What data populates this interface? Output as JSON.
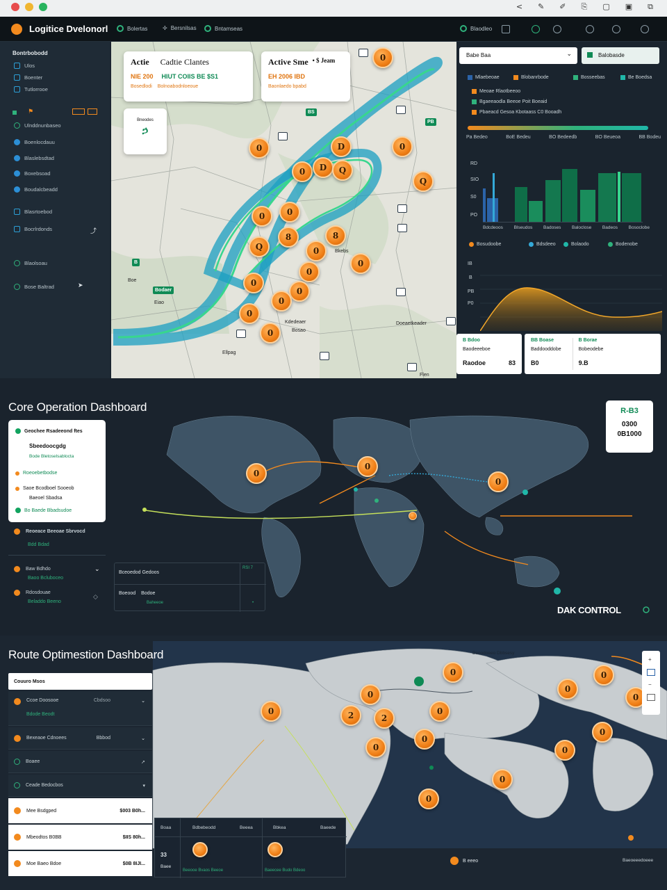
{
  "window": {
    "controls": [
      "#e74c4c",
      "#f0b630",
      "#28b45e"
    ],
    "toolbar_icons": [
      "✓",
      "✎",
      "⎘",
      "▢",
      "▣",
      "⎘",
      "○"
    ]
  },
  "header": {
    "title": "Logitice Dvelonorl",
    "nav": [
      "Bolertas",
      "Bersnilsas",
      "Bntamseas"
    ],
    "right_label": "Blaodleo"
  },
  "sidebar1": {
    "heading": "Bontrbobodd",
    "items": [
      "Ulos",
      "Boenter",
      "Tutlorrooe",
      "Ulnddnunbaseo",
      "Boenlocdauu",
      "Blaslebsdtad",
      "Boxebsoad",
      "Boudalcbeadd",
      "Blasrtoebod",
      "Bocrlrdonds",
      "Blaolsoau",
      "Bose Baltrad"
    ]
  },
  "map1": {
    "card_left": {
      "title": "Actie",
      "title2": "Cadtie Clantes",
      "value": "NIE 200",
      "value2": "HIUT COIIS BE $S1",
      "sub": "Bosedlodi",
      "sub2": "Bolnoabodnloeoue"
    },
    "card_right": {
      "title": "Active Sme",
      "title2": "• $ Jeam",
      "value": "EH 2006 IBD",
      "sub": "Baonlaedo bpabd"
    },
    "card_small": {
      "label": "Bneodes",
      "glyph": "ኃ"
    },
    "markers": {
      "g1": "BS",
      "g2": "PB",
      "g3": "B",
      "g4": "Boe",
      "g5": "Bodaer",
      "g6": "Eiao"
    },
    "place_labels": [
      "Bkebs",
      "Benter",
      "Kdedeaer",
      "Bosao",
      "Doeaetkeader",
      "Ellpag",
      "Flen"
    ],
    "pins": [
      "0",
      "0",
      "D",
      "0",
      "0",
      "D",
      "Q",
      "Q",
      "0",
      "0",
      "8",
      "8",
      "Q",
      "0",
      "0",
      "0",
      "0",
      "0",
      "0",
      "0",
      "0",
      "0",
      "0"
    ]
  },
  "analytics": {
    "select_label": "Babe Baa",
    "tab_label": "Balobasde",
    "legend": [
      "Mlaebeoae",
      "Blobanrbode",
      "Bosseebas",
      "Be Boedsa"
    ],
    "list": [
      "Meoae Rlaotbeeoo",
      "Bgaeeaodla Beeoe Poit Boeaid",
      "Pbaeacd Gesoa Kbotaass C0 Booadh"
    ],
    "kpis": [
      "Pa Bedeo",
      "BoE Bedeu",
      "BO Bedeedb",
      "BO Beueoa",
      "BB Bodeu"
    ],
    "bar_chart": {
      "ylabels": [
        "RD",
        "SIO",
        "S0",
        "PO"
      ],
      "xlabels": [
        "Bdcdeoos",
        "Blseudos",
        "Badoses",
        "Baloclose",
        "Badeos",
        "Bosoclobe"
      ]
    },
    "area_legend": [
      "Bosudoobe",
      "Bdsdeeo",
      "Bolaodo",
      "Bodenobe"
    ],
    "area_ylabels": [
      "IB",
      "B",
      "PB",
      "P0"
    ],
    "minis": [
      {
        "title": "B Bdoo",
        "l1": "Baodeeeboe",
        "l2": "Raodoe",
        "v": "83"
      },
      {
        "title": "BB Boase",
        "l1": "Baddooddobe",
        "l2": "B0",
        "v": ""
      },
      {
        "title": "B Borae",
        "l1": "Bobeodebe",
        "l2": "",
        "v": "9.B"
      }
    ]
  },
  "core": {
    "title": "Core Operation Dashboard",
    "panel": {
      "r1": "Geochee Rsadeeond ftes",
      "r2": "Sbeedoocgdg",
      "r3": "Bode Bletoselsablocta",
      "r4": "Roeoebetbodse",
      "r5": "Saoe Bcodboel Sooeob",
      "r6": "Baeoel Sbadsa",
      "r7": "Bo Baede Bbadsudoe"
    },
    "list": [
      {
        "t": "Reoeace Beeoae Sbrvocd",
        "s": "Bdd Bdad"
      },
      {
        "t": "Baw Bdhdo",
        "s": "Baoo Bcluboceo"
      },
      {
        "t": "Rdosdouae",
        "s": "Beladdo Beeno"
      }
    ],
    "table": {
      "h1": "Bceoedod Gedoos",
      "h2": "RSI 7",
      "r1": "Boeood",
      "r1b": "Bodoe",
      "r1c": "Baheeoe"
    },
    "card": {
      "top": "R-B3",
      "v1": "0300",
      "v2": "0B1000"
    },
    "footer": "DAK CONTROL",
    "pins": [
      "0",
      "0",
      "0",
      "0"
    ]
  },
  "route": {
    "title": "Route Optimestion Dashboard",
    "list": [
      {
        "t": "Couuro Msos",
        "style": "white"
      },
      {
        "t": "Ccoe Doosooe",
        "r": "Cbdsoo",
        "s": "Bdode Beodt",
        "style": "dark"
      },
      {
        "t": "Bexeaoe Cdnoees",
        "r": "Bbbod",
        "style": "dark"
      },
      {
        "t": "Boaee",
        "style": "dark"
      },
      {
        "t": "Ceade Bedocbos",
        "style": "dark"
      },
      {
        "t": "Mee Bsdgped",
        "r": "$003 B0h...",
        "style": "white"
      },
      {
        "t": "Mbeodtos B0BB",
        "r": "$IIS 80h...",
        "style": "white"
      },
      {
        "t": "Moe Baeo Bdoe",
        "r": "$0B 8IJI...",
        "style": "white"
      }
    ],
    "table": {
      "h": [
        "Boaa",
        "Bdbebeodd",
        "Beeea",
        "Bbkea",
        "Baeede"
      ],
      "side": [
        "33",
        "Baee"
      ],
      "r1": "Beeooe Bvaos Beeoe",
      "r2": "Baeecee Budo Bdeoo"
    },
    "bottom": {
      "pin": "B eeeo",
      "right": "Baeoeeedoeee"
    },
    "pins": [
      "0",
      "0",
      "0",
      "0",
      "2",
      "2",
      "0",
      "0",
      "0",
      "0",
      "0",
      "0",
      "0",
      "0",
      "0",
      "0"
    ],
    "map_label": "Beoodoeeo Dbbsesy"
  }
}
